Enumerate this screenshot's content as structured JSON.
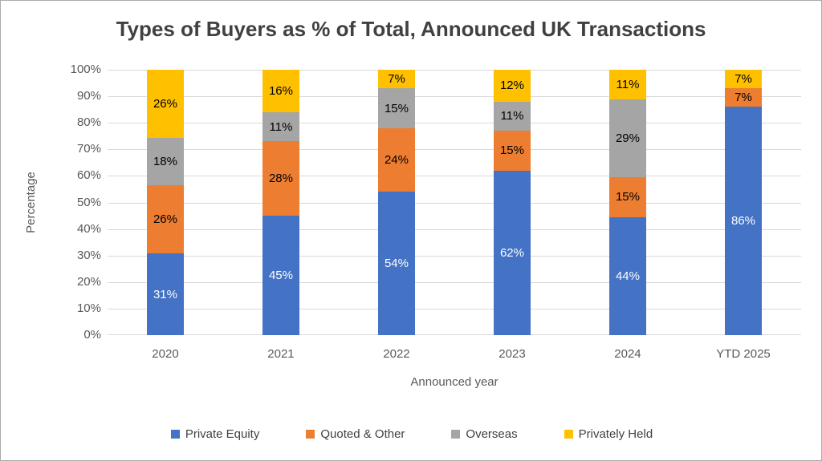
{
  "chart_data": {
    "type": "bar",
    "variant": "stacked-percentage",
    "title": "Types of Buyers as % of Total, Announced UK Transactions",
    "xlabel": "Announced year",
    "ylabel": "Percentage",
    "categories": [
      "2020",
      "2021",
      "2022",
      "2023",
      "2024",
      "YTD 2025"
    ],
    "series": [
      {
        "name": "Private Equity",
        "color": "#4472C4",
        "label_color": "#FFFFFF",
        "values": [
          31,
          45,
          54,
          62,
          44,
          86
        ]
      },
      {
        "name": "Quoted & Other",
        "color": "#ED7D31",
        "label_color": "#000000",
        "values": [
          26,
          28,
          24,
          15,
          15,
          7
        ]
      },
      {
        "name": "Overseas",
        "color": "#A5A5A5",
        "label_color": "#000000",
        "values": [
          18,
          11,
          15,
          11,
          29,
          0
        ]
      },
      {
        "name": "Privately Held",
        "color": "#FFC000",
        "label_color": "#000000",
        "values": [
          26,
          16,
          7,
          12,
          11,
          7
        ]
      }
    ],
    "data_label_suffix": "%",
    "y_ticks": [
      "0%",
      "10%",
      "20%",
      "30%",
      "40%",
      "50%",
      "60%",
      "70%",
      "80%",
      "90%",
      "100%"
    ],
    "ylim": [
      0,
      100
    ],
    "grid": true,
    "gridline_color": "#D9D9D9",
    "legend_position": "bottom",
    "title_color": "#404040",
    "axis_text_color": "#595959"
  }
}
